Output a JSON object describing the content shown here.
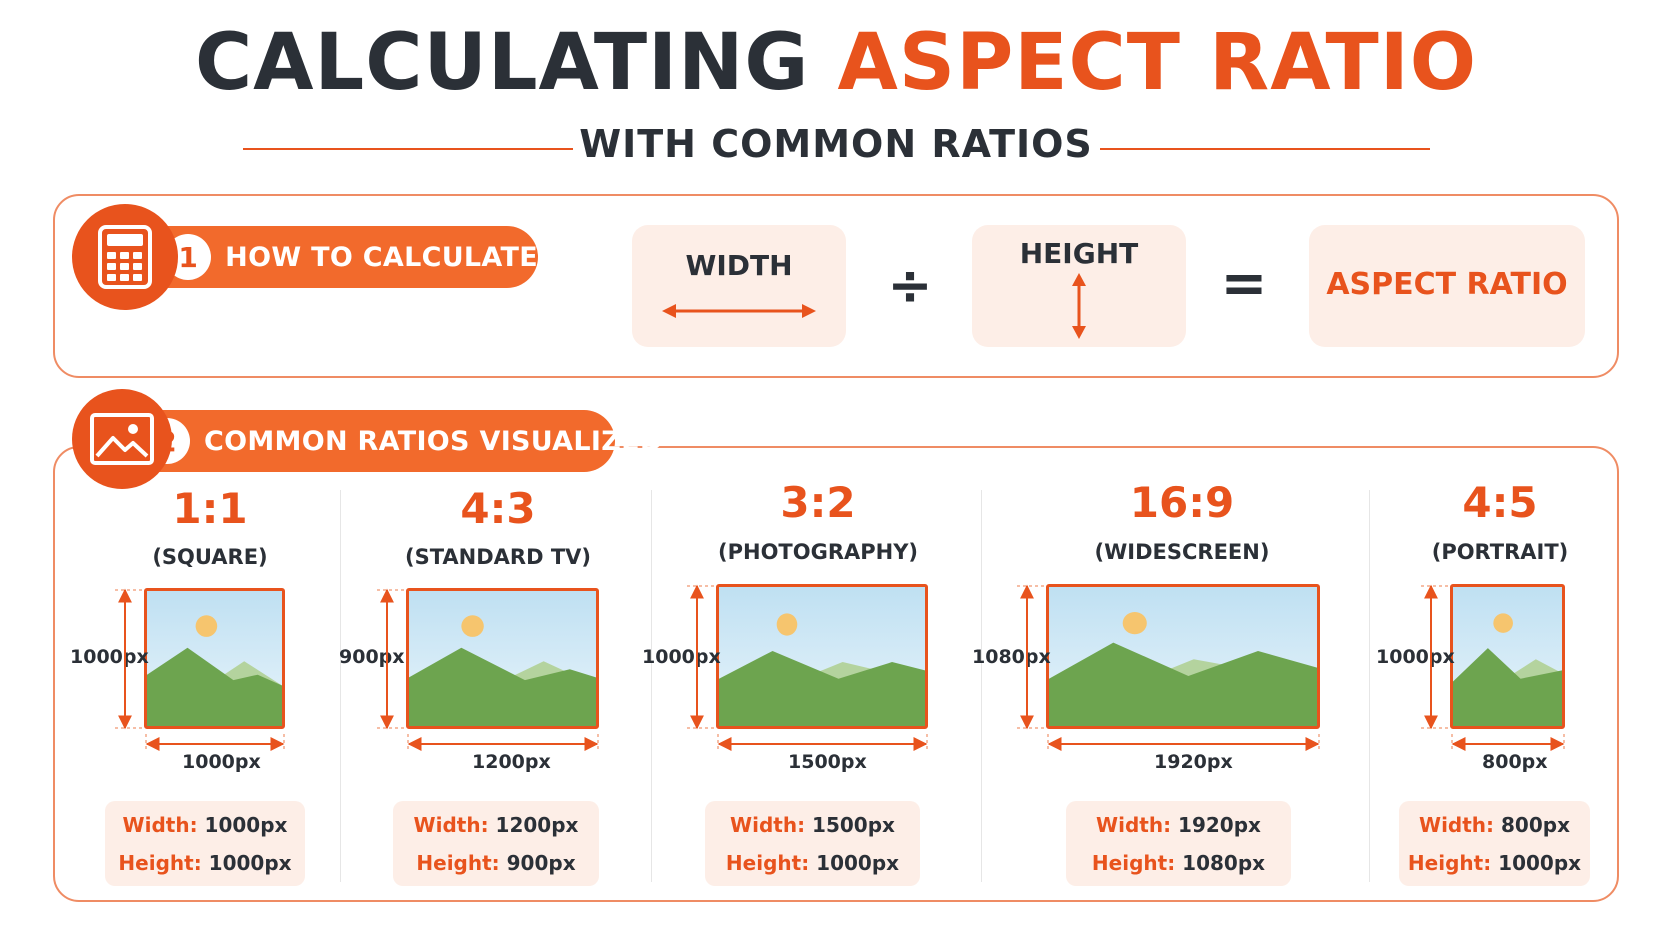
{
  "title": {
    "part1": "CALCULATING",
    "part2": "ASPECT RATIO"
  },
  "subtitle": "WITH COMMON RATIOS",
  "section1": {
    "number": "1",
    "label": "HOW TO CALCULATE",
    "icon": "calculator-icon",
    "formula": {
      "width": "WIDTH",
      "divide": "÷",
      "height": "HEIGHT",
      "equals": "=",
      "result": "ASPECT RATIO"
    }
  },
  "section2": {
    "number": "2",
    "label": "COMMON RATIOS VISUALIZED",
    "icon": "image-icon",
    "ratios": [
      {
        "ratio": "1:1",
        "desc": "(SQUARE)",
        "height_label": "1000px",
        "width_label": "1000px",
        "width_key": "Width:",
        "width_val": "1000px",
        "height_key": "Height:",
        "height_val": "1000px"
      },
      {
        "ratio": "4:3",
        "desc": "(STANDARD TV)",
        "height_label": "900px",
        "width_label": "1200px",
        "width_key": "Width:",
        "width_val": "1200px",
        "height_key": "Height:",
        "height_val": "900px"
      },
      {
        "ratio": "3:2",
        "desc": "(PHOTOGRAPHY)",
        "height_label": "1000px",
        "width_label": "1500px",
        "width_key": "Width:",
        "width_val": "1500px",
        "height_key": "Height:",
        "height_val": "1000px"
      },
      {
        "ratio": "16:9",
        "desc": "(WIDESCREEN)",
        "height_label": "1080px",
        "width_label": "1920px",
        "width_key": "Width:",
        "width_val": "1920px",
        "height_key": "Height:",
        "height_val": "1080px"
      },
      {
        "ratio": "4:5",
        "desc": "(PORTRAIT)",
        "height_label": "1000px",
        "width_label": "800px",
        "width_key": "Width:",
        "width_val": "800px",
        "height_key": "Height:",
        "height_val": "1000px"
      }
    ]
  },
  "colors": {
    "accent": "#e8531d",
    "pill": "#f26a2c",
    "box_bg": "#fdeee7",
    "dark": "#2b3037"
  }
}
